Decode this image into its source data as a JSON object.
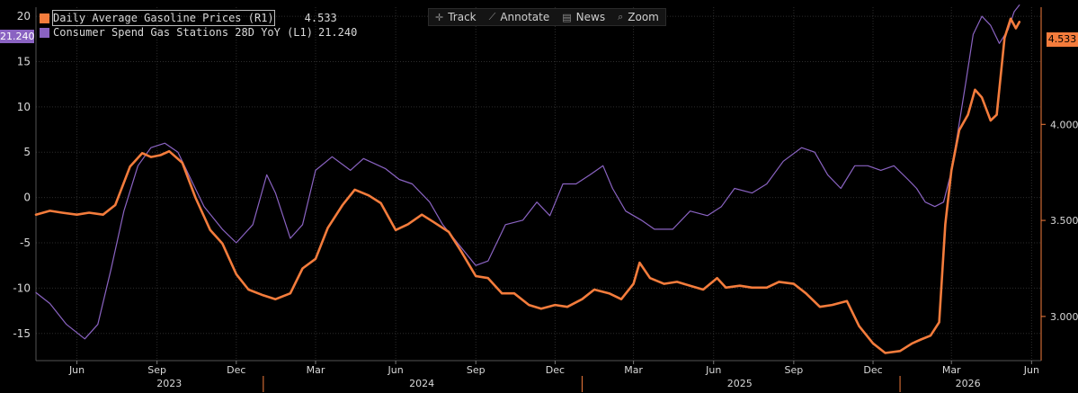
{
  "legend": [
    {
      "name": "Daily Average Gasoline Prices (R1)",
      "value": "4.533",
      "color": "#f47c3c"
    },
    {
      "name": "Consumer Spend Gas Stations 28D YoY (L1)",
      "value": "21.240",
      "color": "#8a63c2"
    }
  ],
  "toolbar": [
    {
      "label": "Track",
      "icon": "crosshair-icon",
      "glyph": "✛"
    },
    {
      "label": "Annotate",
      "icon": "pen-icon",
      "glyph": "⟋"
    },
    {
      "label": "News",
      "icon": "news-icon",
      "glyph": "▤"
    },
    {
      "label": "Zoom",
      "icon": "magnifier-icon",
      "glyph": "⌕"
    }
  ],
  "last_values": {
    "left": "21.240",
    "right": "4.533"
  },
  "colors": {
    "gasoline": "#f47c3c",
    "spend": "#8a63c2",
    "axis": "#f47c3c",
    "text": "#d9d9d9"
  },
  "chart_data": {
    "type": "line",
    "xlabel": "",
    "x_range": [
      "2023-04-15",
      "2026-06-12"
    ],
    "x_ticks": [
      {
        "date": "2023-06-01",
        "label": "Jun"
      },
      {
        "date": "2023-09-01",
        "label": "Sep"
      },
      {
        "date": "2023-12-01",
        "label": "Dec"
      },
      {
        "date": "2024-03-01",
        "label": "Mar"
      },
      {
        "date": "2024-06-01",
        "label": "Jun"
      },
      {
        "date": "2024-09-01",
        "label": "Sep"
      },
      {
        "date": "2024-12-01",
        "label": "Dec"
      },
      {
        "date": "2025-03-01",
        "label": "Mar"
      },
      {
        "date": "2025-06-01",
        "label": "Jun"
      },
      {
        "date": "2025-09-01",
        "label": "Sep"
      },
      {
        "date": "2025-12-01",
        "label": "Dec"
      },
      {
        "date": "2026-03-01",
        "label": "Mar"
      },
      {
        "date": "2026-06-01",
        "label": "Jun"
      }
    ],
    "years": [
      {
        "label": "2023",
        "center": "2023-09-15",
        "boundary": "2024-01-01"
      },
      {
        "label": "2024",
        "center": "2024-07-01",
        "boundary": "2025-01-01"
      },
      {
        "label": "2025",
        "center": "2025-07-01",
        "boundary": "2026-01-01"
      },
      {
        "label": "2026",
        "center": "2026-03-20",
        "boundary": null
      }
    ],
    "y_left": {
      "label": "",
      "range": [
        -18,
        21
      ],
      "ticks": [
        20,
        15,
        10,
        5,
        0,
        -5,
        -10,
        -15
      ]
    },
    "y_right": {
      "label": "",
      "range": [
        2.77,
        4.61
      ],
      "ticks": [
        4.0,
        3.5,
        3.0
      ],
      "tick_labels": [
        "4.000",
        "3.500",
        "3.000"
      ]
    },
    "series": [
      {
        "name": "Consumer Spend Gas Stations 28D YoY (L1)",
        "axis": "left",
        "color": "#8a63c2",
        "points": [
          [
            "2023-04-15",
            -10.5
          ],
          [
            "2023-05-01",
            -11.7
          ],
          [
            "2023-05-20",
            -14.0
          ],
          [
            "2023-06-10",
            -15.6
          ],
          [
            "2023-06-25",
            -14.0
          ],
          [
            "2023-07-10",
            -8.0
          ],
          [
            "2023-07-25",
            -1.5
          ],
          [
            "2023-08-10",
            3.5
          ],
          [
            "2023-08-25",
            5.5
          ],
          [
            "2023-09-10",
            6.0
          ],
          [
            "2023-09-25",
            5.0
          ],
          [
            "2023-10-10",
            2.0
          ],
          [
            "2023-10-25",
            -1.0
          ],
          [
            "2023-11-15",
            -3.5
          ],
          [
            "2023-12-01",
            -5.0
          ],
          [
            "2023-12-20",
            -3.0
          ],
          [
            "2024-01-05",
            2.5
          ],
          [
            "2024-01-15",
            0.5
          ],
          [
            "2024-02-01",
            -4.5
          ],
          [
            "2024-02-15",
            -3.0
          ],
          [
            "2024-03-01",
            3.0
          ],
          [
            "2024-03-20",
            4.5
          ],
          [
            "2024-04-10",
            3.0
          ],
          [
            "2024-04-25",
            4.3
          ],
          [
            "2024-05-20",
            3.2
          ],
          [
            "2024-06-05",
            2.0
          ],
          [
            "2024-06-20",
            1.5
          ],
          [
            "2024-07-10",
            -0.5
          ],
          [
            "2024-07-25",
            -3.0
          ],
          [
            "2024-08-15",
            -5.5
          ],
          [
            "2024-09-01",
            -7.5
          ],
          [
            "2024-09-15",
            -7.0
          ],
          [
            "2024-10-05",
            -3.0
          ],
          [
            "2024-10-25",
            -2.5
          ],
          [
            "2024-11-10",
            -0.5
          ],
          [
            "2024-11-25",
            -2.0
          ],
          [
            "2024-12-10",
            1.5
          ],
          [
            "2024-12-25",
            1.5
          ],
          [
            "2025-01-10",
            2.5
          ],
          [
            "2025-01-25",
            3.5
          ],
          [
            "2025-02-05",
            1.0
          ],
          [
            "2025-02-20",
            -1.5
          ],
          [
            "2025-03-10",
            -2.5
          ],
          [
            "2025-03-25",
            -3.5
          ],
          [
            "2025-04-15",
            -3.5
          ],
          [
            "2025-05-05",
            -1.5
          ],
          [
            "2025-05-25",
            -2.0
          ],
          [
            "2025-06-10",
            -1.0
          ],
          [
            "2025-06-25",
            1.0
          ],
          [
            "2025-07-15",
            0.5
          ],
          [
            "2025-08-01",
            1.5
          ],
          [
            "2025-08-20",
            4.0
          ],
          [
            "2025-09-10",
            5.5
          ],
          [
            "2025-09-25",
            5.0
          ],
          [
            "2025-10-10",
            2.5
          ],
          [
            "2025-10-25",
            1.0
          ],
          [
            "2025-11-10",
            3.5
          ],
          [
            "2025-11-25",
            3.5
          ],
          [
            "2025-12-10",
            3.0
          ],
          [
            "2025-12-25",
            3.5
          ],
          [
            "2026-01-10",
            2.0
          ],
          [
            "2026-01-20",
            1.0
          ],
          [
            "2026-01-30",
            -0.5
          ],
          [
            "2026-02-10",
            -1.0
          ],
          [
            "2026-02-20",
            -0.5
          ],
          [
            "2026-02-28",
            2.5
          ],
          [
            "2026-03-08",
            7.0
          ],
          [
            "2026-03-18",
            13.0
          ],
          [
            "2026-03-26",
            18.0
          ],
          [
            "2026-04-05",
            20.0
          ],
          [
            "2026-04-15",
            19.0
          ],
          [
            "2026-04-25",
            17.0
          ],
          [
            "2026-05-05",
            18.5
          ],
          [
            "2026-05-12",
            20.5
          ],
          [
            "2026-05-18",
            21.24
          ]
        ]
      },
      {
        "name": "Daily Average Gasoline Prices (R1)",
        "axis": "right",
        "color": "#f47c3c",
        "points": [
          [
            "2023-04-15",
            3.53
          ],
          [
            "2023-05-01",
            3.55
          ],
          [
            "2023-05-15",
            3.54
          ],
          [
            "2023-06-01",
            3.53
          ],
          [
            "2023-06-15",
            3.54
          ],
          [
            "2023-07-01",
            3.53
          ],
          [
            "2023-07-15",
            3.58
          ],
          [
            "2023-08-01",
            3.78
          ],
          [
            "2023-08-15",
            3.85
          ],
          [
            "2023-08-25",
            3.83
          ],
          [
            "2023-09-05",
            3.84
          ],
          [
            "2023-09-15",
            3.86
          ],
          [
            "2023-09-30",
            3.8
          ],
          [
            "2023-10-15",
            3.62
          ],
          [
            "2023-11-01",
            3.45
          ],
          [
            "2023-11-15",
            3.38
          ],
          [
            "2023-12-01",
            3.22
          ],
          [
            "2023-12-15",
            3.14
          ],
          [
            "2024-01-01",
            3.11
          ],
          [
            "2024-01-15",
            3.09
          ],
          [
            "2024-02-01",
            3.12
          ],
          [
            "2024-02-15",
            3.25
          ],
          [
            "2024-03-01",
            3.3
          ],
          [
            "2024-03-15",
            3.46
          ],
          [
            "2024-04-01",
            3.58
          ],
          [
            "2024-04-15",
            3.66
          ],
          [
            "2024-05-01",
            3.63
          ],
          [
            "2024-05-15",
            3.59
          ],
          [
            "2024-06-01",
            3.45
          ],
          [
            "2024-06-15",
            3.48
          ],
          [
            "2024-07-01",
            3.53
          ],
          [
            "2024-07-15",
            3.49
          ],
          [
            "2024-08-01",
            3.44
          ],
          [
            "2024-08-15",
            3.34
          ],
          [
            "2024-09-01",
            3.21
          ],
          [
            "2024-09-15",
            3.2
          ],
          [
            "2024-10-01",
            3.12
          ],
          [
            "2024-10-15",
            3.12
          ],
          [
            "2024-11-01",
            3.06
          ],
          [
            "2024-11-15",
            3.04
          ],
          [
            "2024-12-01",
            3.06
          ],
          [
            "2024-12-15",
            3.05
          ],
          [
            "2025-01-01",
            3.09
          ],
          [
            "2025-01-15",
            3.14
          ],
          [
            "2025-02-01",
            3.12
          ],
          [
            "2025-02-15",
            3.09
          ],
          [
            "2025-03-01",
            3.17
          ],
          [
            "2025-03-08",
            3.28
          ],
          [
            "2025-03-20",
            3.2
          ],
          [
            "2025-04-05",
            3.17
          ],
          [
            "2025-04-20",
            3.18
          ],
          [
            "2025-05-05",
            3.16
          ],
          [
            "2025-05-20",
            3.14
          ],
          [
            "2025-06-05",
            3.2
          ],
          [
            "2025-06-15",
            3.15
          ],
          [
            "2025-07-01",
            3.16
          ],
          [
            "2025-07-15",
            3.15
          ],
          [
            "2025-08-01",
            3.15
          ],
          [
            "2025-08-15",
            3.18
          ],
          [
            "2025-09-01",
            3.17
          ],
          [
            "2025-09-15",
            3.12
          ],
          [
            "2025-10-01",
            3.05
          ],
          [
            "2025-10-15",
            3.06
          ],
          [
            "2025-11-01",
            3.08
          ],
          [
            "2025-11-15",
            2.95
          ],
          [
            "2025-12-01",
            2.86
          ],
          [
            "2025-12-15",
            2.81
          ],
          [
            "2026-01-01",
            2.82
          ],
          [
            "2026-01-15",
            2.86
          ],
          [
            "2026-01-25",
            2.88
          ],
          [
            "2026-02-05",
            2.9
          ],
          [
            "2026-02-15",
            2.97
          ],
          [
            "2026-02-22",
            3.48
          ],
          [
            "2026-03-01",
            3.76
          ],
          [
            "2026-03-10",
            3.97
          ],
          [
            "2026-03-20",
            4.05
          ],
          [
            "2026-03-28",
            4.18
          ],
          [
            "2026-04-05",
            4.14
          ],
          [
            "2026-04-15",
            4.02
          ],
          [
            "2026-04-22",
            4.05
          ],
          [
            "2026-05-01",
            4.45
          ],
          [
            "2026-05-08",
            4.55
          ],
          [
            "2026-05-14",
            4.5
          ],
          [
            "2026-05-18",
            4.533
          ]
        ]
      }
    ]
  }
}
